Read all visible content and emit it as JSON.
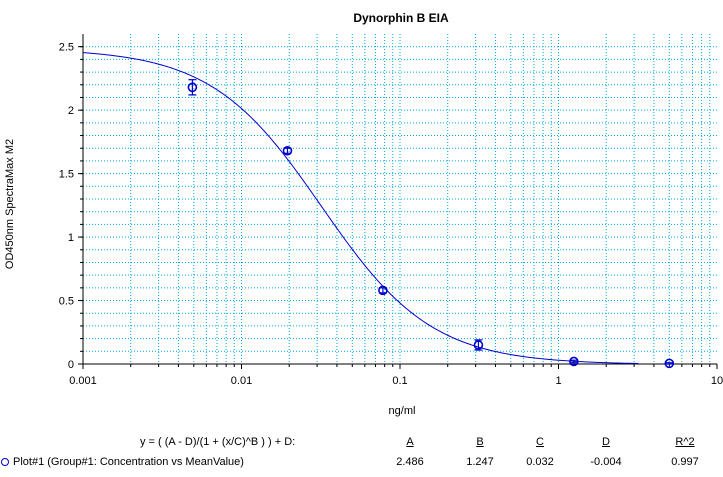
{
  "chart_data": {
    "type": "scatter",
    "title": "Dynorphin B EIA",
    "xlabel": "ng/ml",
    "ylabel": "OD450nm SpectraMax M2",
    "xscale": "log",
    "xlim": [
      0.001,
      10
    ],
    "ylim": [
      0,
      2.6
    ],
    "x_ticks": [
      "0.001",
      "0.01",
      "0.1",
      "1",
      "10"
    ],
    "y_ticks": [
      "0",
      "0.5",
      "1",
      "1.5",
      "2",
      "2.5"
    ],
    "grid": true,
    "series": [
      {
        "name": "Plot#1 (Group#1: Concentration vs MeanValue)",
        "points": [
          {
            "x": 0.0049,
            "y": 2.18,
            "err": 0.06
          },
          {
            "x": 0.0195,
            "y": 1.68,
            "err": 0.02
          },
          {
            "x": 0.078,
            "y": 0.58,
            "err": 0.02
          },
          {
            "x": 0.3125,
            "y": 0.15,
            "err": 0.04
          },
          {
            "x": 1.25,
            "y": 0.02,
            "err": 0.01
          },
          {
            "x": 5.0,
            "y": 0.005,
            "err": 0.005
          }
        ],
        "fit": {
          "model": "4PL",
          "A": 2.486,
          "B": 1.247,
          "C": 0.032,
          "D": -0.004
        }
      }
    ],
    "fit_table": {
      "equation": "y = ( (A - D)/(1 + (x/C)^B ) ) + D:",
      "headers": [
        "A",
        "B",
        "C",
        "D",
        "R^2"
      ],
      "values": [
        "2.486",
        "1.247",
        "0.032",
        "-0.004",
        "0.997"
      ]
    },
    "colors": {
      "series": "#0000cc",
      "grid": "#00aadd",
      "axis": "#000000"
    }
  }
}
